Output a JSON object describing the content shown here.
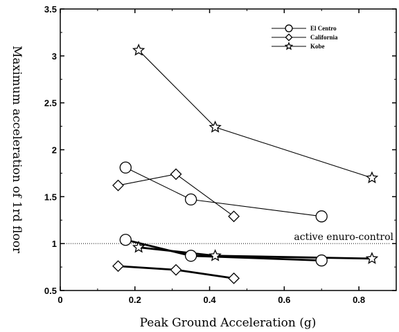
{
  "chart_data": {
    "type": "line",
    "title": "",
    "xlabel": "Peak Ground Acceleration (g)",
    "ylabel": "Maximum acceleration of 1rd floor",
    "xlim": [
      0,
      0.9
    ],
    "ylim": [
      0.5,
      3.5
    ],
    "xticks": [
      0,
      0.2,
      0.4,
      0.6,
      0.8
    ],
    "xtick_labels": [
      "0",
      "0.2",
      "0.4",
      "0.6",
      "0.8"
    ],
    "yticks": [
      0.5,
      1,
      1.5,
      2,
      2.5,
      3,
      3.5
    ],
    "ytick_labels": [
      "0.5",
      "1",
      "1.5",
      "2",
      "2.5",
      "3",
      "3.5"
    ],
    "grid": false,
    "legend_position": "top-right",
    "legend": [
      {
        "name": "El Centro",
        "marker": "circle"
      },
      {
        "name": "California",
        "marker": "diamond"
      },
      {
        "name": "Kobe",
        "marker": "star"
      }
    ],
    "reference_line": {
      "y": 1.0,
      "label": "active enuro-control"
    },
    "series": [
      {
        "name": "El Centro",
        "group": "uncontrolled",
        "marker": "circle",
        "x": [
          0.175,
          0.35,
          0.7
        ],
        "y": [
          1.81,
          1.47,
          1.29
        ]
      },
      {
        "name": "California",
        "group": "uncontrolled",
        "marker": "diamond",
        "x": [
          0.155,
          0.31,
          0.465
        ],
        "y": [
          1.62,
          1.74,
          1.29
        ]
      },
      {
        "name": "Kobe",
        "group": "uncontrolled",
        "marker": "star",
        "x": [
          0.21,
          0.415,
          0.835
        ],
        "y": [
          3.06,
          2.24,
          1.7
        ]
      },
      {
        "name": "El Centro",
        "group": "controlled",
        "marker": "circle",
        "x": [
          0.175,
          0.35,
          0.7
        ],
        "y": [
          1.04,
          0.87,
          0.82
        ]
      },
      {
        "name": "California",
        "group": "controlled",
        "marker": "diamond",
        "x": [
          0.155,
          0.31,
          0.465
        ],
        "y": [
          0.76,
          0.72,
          0.63
        ]
      },
      {
        "name": "Kobe",
        "group": "controlled",
        "marker": "star",
        "x": [
          0.21,
          0.415,
          0.835
        ],
        "y": [
          0.96,
          0.87,
          0.84
        ]
      }
    ]
  }
}
